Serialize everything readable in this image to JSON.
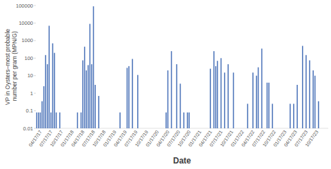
{
  "chart_data": {
    "type": "bar",
    "x_label": "Date",
    "y_label": "VP in Oysters–most probable number per gram (MPN/G)",
    "categories": [
      null,
      null,
      null,
      "04/17/17",
      null,
      null,
      null,
      null,
      null,
      "07/17/17",
      null,
      null,
      null,
      null,
      null,
      "10/17/17",
      null,
      null,
      null,
      null,
      null,
      "01/17/18",
      null,
      null,
      null,
      null,
      null,
      "04/17/18",
      null,
      null,
      null,
      null,
      null,
      "07/17/18",
      null,
      null,
      null,
      null,
      null,
      "10/17/18",
      null,
      null,
      null,
      null,
      null,
      "01/17/19",
      null,
      null,
      null,
      null,
      null,
      "04/17/19",
      null,
      null,
      null,
      null,
      null,
      "07/17/19",
      null,
      null,
      null,
      null,
      null,
      "10/17/19",
      null,
      null,
      null,
      null,
      null,
      "01/17/20",
      null,
      null,
      null,
      null,
      null,
      "04/17/20",
      null,
      null,
      null,
      null,
      null,
      "07/17/20",
      null,
      null,
      null,
      null,
      null,
      "10/17/20",
      null,
      null,
      null,
      null,
      null,
      "01/17/21",
      null,
      null,
      null,
      null,
      null,
      "04/17/21",
      null,
      null,
      null,
      null,
      null,
      "07/17/21",
      null,
      null,
      null,
      null,
      null,
      "10/17/21",
      null,
      null,
      null,
      null,
      null,
      "01/17/22",
      null,
      null,
      null,
      null,
      null,
      "04/17/22",
      null,
      null,
      null,
      null,
      null,
      "07/17/22",
      null,
      null,
      null,
      null,
      null,
      "10/17/22",
      null,
      null,
      null,
      null,
      null,
      "01/17/23",
      null,
      null,
      null,
      null,
      null,
      "04/17/23",
      null,
      null,
      null,
      null,
      null,
      "07/17/23",
      null,
      null,
      null,
      null,
      null,
      "10/17/23",
      null,
      null,
      null,
      null,
      null
    ],
    "values": [
      0.08,
      0.08,
      0.08,
      0.35,
      2.5,
      150,
      45,
      7000,
      0.08,
      700,
      200,
      0.08,
      null,
      0.08,
      null,
      null,
      null,
      null,
      null,
      null,
      null,
      null,
      null,
      0.08,
      null,
      0.08,
      75,
      450,
      20,
      40,
      9000,
      45,
      90000,
      3,
      null,
      0.7,
      null,
      null,
      null,
      null,
      null,
      null,
      null,
      null,
      null,
      null,
      null,
      0.08,
      null,
      null,
      null,
      28,
      35,
      null,
      90,
      null,
      null,
      11,
      null,
      null,
      null,
      null,
      null,
      null,
      null,
      null,
      null,
      null,
      null,
      null,
      null,
      null,
      null,
      0.08,
      20,
      null,
      250,
      null,
      null,
      45,
      null,
      3.5,
      null,
      0.08,
      null,
      0.08,
      0.08,
      null,
      null,
      null,
      null,
      null,
      null,
      null,
      null,
      null,
      null,
      null,
      25,
      null,
      250,
      35,
      70,
      null,
      100,
      null,
      15,
      null,
      45,
      null,
      null,
      15,
      null,
      null,
      null,
      null,
      null,
      null,
      null,
      0.25,
      null,
      null,
      15,
      null,
      10,
      30,
      null,
      350,
      null,
      null,
      4,
      4,
      null,
      0.25,
      null,
      null,
      null,
      null,
      null,
      null,
      null,
      null,
      null,
      0.25,
      null,
      0.25,
      null,
      3,
      null,
      null,
      500,
      null,
      150,
      null,
      75,
      null,
      20,
      10,
      null,
      0.35,
      null,
      null,
      null,
      null,
      null
    ],
    "color": "#4a72b8",
    "log": "y",
    "grid": false,
    "ylim": [
      0.01,
      100000
    ],
    "yticks": [
      0.01,
      0.1,
      1,
      10,
      100,
      1000,
      10000,
      100000
    ]
  }
}
